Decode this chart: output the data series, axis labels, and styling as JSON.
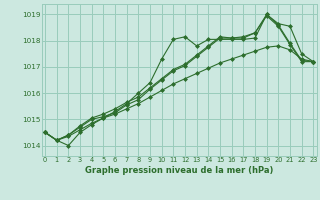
{
  "bg_color": "#cce8e0",
  "grid_color": "#99ccbb",
  "line_color": "#2d6e2d",
  "marker": "D",
  "marker_size": 2.0,
  "xlabel": "Graphe pression niveau de la mer (hPa)",
  "xlim": [
    -0.3,
    23.3
  ],
  "ylim": [
    1013.6,
    1019.4
  ],
  "yticks": [
    1014,
    1015,
    1016,
    1017,
    1018,
    1019
  ],
  "xticks": [
    0,
    1,
    2,
    3,
    4,
    5,
    6,
    7,
    8,
    9,
    10,
    11,
    12,
    13,
    14,
    15,
    16,
    17,
    18,
    19,
    20,
    21,
    22,
    23
  ],
  "series": [
    [
      1014.5,
      1014.2,
      1014.0,
      1014.5,
      1014.8,
      1015.05,
      1015.3,
      1015.6,
      1016.0,
      1016.4,
      1017.3,
      1018.05,
      1018.15,
      1017.8,
      1018.05,
      1018.05,
      1018.05,
      1018.05,
      1018.1,
      1019.0,
      1018.65,
      1018.55,
      1017.5,
      1017.2
    ],
    [
      1014.5,
      1014.2,
      1014.4,
      1014.7,
      1015.0,
      1015.1,
      1015.25,
      1015.55,
      1015.75,
      1016.15,
      1016.5,
      1016.85,
      1017.05,
      1017.4,
      1017.75,
      1018.1,
      1018.1,
      1018.15,
      1018.3,
      1018.95,
      1018.55,
      1017.85,
      1017.2,
      1017.2
    ],
    [
      1014.5,
      1014.2,
      1014.4,
      1014.75,
      1015.05,
      1015.2,
      1015.4,
      1015.65,
      1015.85,
      1016.2,
      1016.55,
      1016.9,
      1017.1,
      1017.45,
      1017.8,
      1018.15,
      1018.1,
      1018.1,
      1018.3,
      1019.0,
      1018.6,
      1017.9,
      1017.25,
      1017.2
    ],
    [
      1014.5,
      1014.2,
      1014.35,
      1014.6,
      1014.85,
      1015.05,
      1015.2,
      1015.4,
      1015.6,
      1015.85,
      1016.1,
      1016.35,
      1016.55,
      1016.75,
      1016.95,
      1017.15,
      1017.3,
      1017.45,
      1017.6,
      1017.75,
      1017.8,
      1017.65,
      1017.3,
      1017.2
    ]
  ]
}
